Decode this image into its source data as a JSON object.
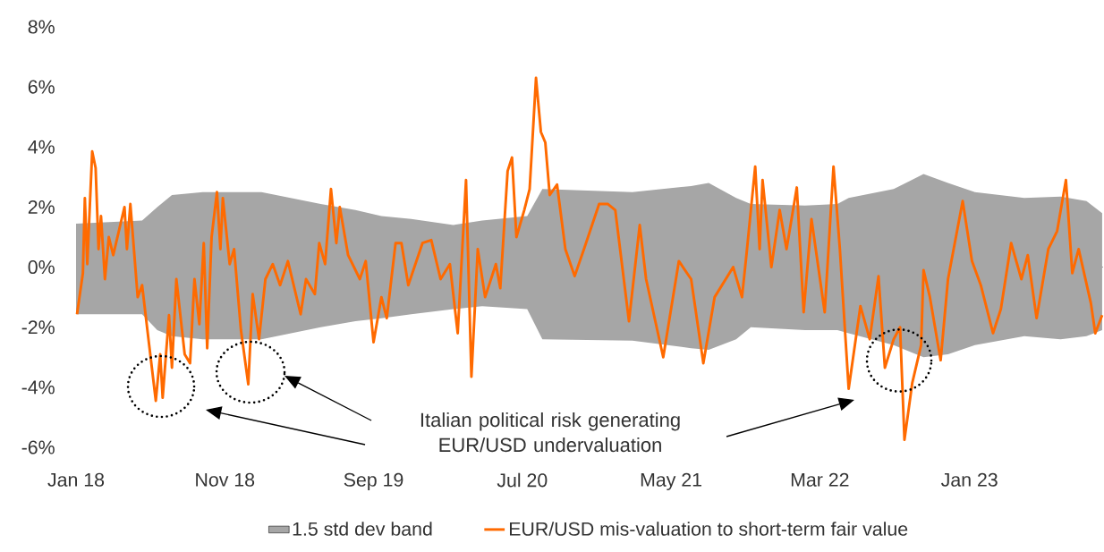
{
  "chart_data": {
    "type": "line",
    "xlim": [
      "2018-01-01",
      "2023-10-01"
    ],
    "xticks": [
      {
        "value": "2018-01-01",
        "label": "Jan 18"
      },
      {
        "value": "2018-11-01",
        "label": "Nov 18"
      },
      {
        "value": "2019-09-01",
        "label": "Sep 19"
      },
      {
        "value": "2020-07-01",
        "label": "Jul 20"
      },
      {
        "value": "2021-05-01",
        "label": "May 21"
      },
      {
        "value": "2022-03-01",
        "label": "Mar 22"
      },
      {
        "value": "2023-01-01",
        "label": "Jan 23"
      }
    ],
    "ylim": [
      -6,
      8
    ],
    "yticks": [
      {
        "value": -6,
        "label": "-6%"
      },
      {
        "value": -4,
        "label": "-4%"
      },
      {
        "value": -2,
        "label": "-2%"
      },
      {
        "value": 0,
        "label": "0%"
      },
      {
        "value": 2,
        "label": "2%"
      },
      {
        "value": 4,
        "label": "4%"
      },
      {
        "value": 6,
        "label": "6%"
      },
      {
        "value": 8,
        "label": "8%"
      }
    ],
    "legend": "bottom",
    "annotations": [
      "Italian political risk generating EUR/USD undervaluation"
    ],
    "series": [
      {
        "name": "1.5 std dev band",
        "type": "area",
        "color": "#a6a6a6",
        "x": [
          "2018-01-01",
          "2018-05-16",
          "2018-06-16",
          "2018-07-16",
          "2018-09-17",
          "2019-01-15",
          "2019-05-16",
          "2019-07-26",
          "2019-09-17",
          "2019-11-17",
          "2020-02-11",
          "2020-04-10",
          "2020-07-11",
          "2020-08-11",
          "2021-02-11",
          "2021-06-11",
          "2021-07-17",
          "2021-09-11",
          "2021-10-11",
          "2022-01-30",
          "2022-04-06",
          "2022-04-29",
          "2022-07-30",
          "2022-09-29",
          "2022-11-18",
          "2023-01-12",
          "2023-04-23",
          "2023-07-06",
          "2023-08-28",
          "2023-09-29"
        ],
        "values": [
          null,
          null,
          null,
          null,
          null,
          null,
          null,
          null,
          null,
          null,
          null,
          null,
          null,
          null,
          null,
          null,
          null,
          null,
          null,
          null,
          null,
          null,
          null,
          null,
          null,
          null,
          null,
          null,
          null,
          null
        ],
        "upper": [
          1.45,
          1.55,
          2.0,
          2.4,
          2.5,
          2.5,
          2.1,
          1.9,
          1.7,
          1.6,
          1.4,
          1.55,
          1.7,
          2.6,
          2.5,
          2.7,
          2.8,
          2.3,
          2.1,
          2.05,
          2.1,
          2.3,
          2.6,
          3.1,
          2.8,
          2.5,
          2.3,
          2.35,
          2.2,
          1.8
        ],
        "lower": [
          -1.57,
          -1.57,
          -2.1,
          -2.3,
          -2.4,
          -2.4,
          -2.0,
          -1.8,
          -1.7,
          -1.57,
          -1.4,
          -1.3,
          -1.4,
          -2.4,
          -2.45,
          -2.7,
          -2.75,
          -2.4,
          -2.0,
          -2.1,
          -2.1,
          -2.2,
          -2.6,
          -3.0,
          -2.9,
          -2.6,
          -2.3,
          -2.4,
          -2.3,
          -2.1
        ]
      },
      {
        "name": "EUR/USD mis-valuation to short-term fair value",
        "type": "line",
        "color": "#ff6a00",
        "x": [
          "2018-01-03",
          "2018-01-15",
          "2018-01-19",
          "2018-01-24",
          "2018-02-03",
          "2018-02-10",
          "2018-02-16",
          "2018-02-21",
          "2018-03-01",
          "2018-03-09",
          "2018-03-18",
          "2018-04-10",
          "2018-04-15",
          "2018-04-22",
          "2018-05-07",
          "2018-05-16",
          "2018-05-29",
          "2018-06-13",
          "2018-06-22",
          "2018-06-27",
          "2018-07-10",
          "2018-07-16",
          "2018-07-25",
          "2018-08-11",
          "2018-08-22",
          "2018-08-31",
          "2018-09-10",
          "2018-09-19",
          "2018-09-26",
          "2018-10-05",
          "2018-10-16",
          "2018-10-23",
          "2018-10-28",
          "2018-11-11",
          "2018-11-20",
          "2018-12-04",
          "2018-12-19",
          "2018-12-28",
          "2019-01-10",
          "2019-01-23",
          "2019-02-07",
          "2019-02-22",
          "2019-03-10",
          "2019-04-05",
          "2019-04-16",
          "2019-05-04",
          "2019-05-13",
          "2019-05-25",
          "2019-06-06",
          "2019-06-17",
          "2019-06-24",
          "2019-07-11",
          "2019-08-04",
          "2019-08-16",
          "2019-09-01",
          "2019-09-17",
          "2019-09-28",
          "2019-10-16",
          "2019-10-28",
          "2019-11-11",
          "2019-12-10",
          "2019-12-28",
          "2020-01-16",
          "2020-02-04",
          "2020-02-20",
          "2020-03-08",
          "2020-03-19",
          "2020-04-01",
          "2020-04-16",
          "2020-05-08",
          "2020-05-17",
          "2020-06-01",
          "2020-06-10",
          "2020-06-19",
          "2020-07-05",
          "2020-07-16",
          "2020-07-29",
          "2020-08-08",
          "2020-08-17",
          "2020-08-26",
          "2020-09-10",
          "2020-09-27",
          "2020-10-16",
          "2020-11-04",
          "2020-12-05",
          "2020-12-23",
          "2021-01-07",
          "2021-02-04",
          "2021-02-26",
          "2021-03-11",
          "2021-04-15",
          "2021-05-17",
          "2021-06-11",
          "2021-07-06",
          "2021-07-29",
          "2021-09-05",
          "2021-09-23",
          "2021-10-02",
          "2021-10-20",
          "2021-10-29",
          "2021-11-04",
          "2021-11-22",
          "2021-12-09",
          "2021-12-23",
          "2022-01-13",
          "2022-01-27",
          "2022-02-12",
          "2022-03-11",
          "2022-03-29",
          "2022-04-11",
          "2022-04-29",
          "2022-05-23",
          "2022-06-11",
          "2022-06-29",
          "2022-07-12",
          "2022-07-30",
          "2022-08-12",
          "2022-08-21",
          "2022-09-06",
          "2022-09-24",
          "2022-09-29",
          "2022-10-12",
          "2022-11-03",
          "2022-11-18",
          "2022-12-18",
          "2023-01-06",
          "2023-01-24",
          "2023-02-18",
          "2023-03-06",
          "2023-03-27",
          "2023-04-17",
          "2023-04-30",
          "2023-05-18",
          "2023-06-11",
          "2023-06-29",
          "2023-07-17",
          "2023-07-30",
          "2023-08-12",
          "2023-09-06",
          "2023-09-15",
          "2023-09-29"
        ],
        "values": [
          -1.57,
          -0.2,
          2.3,
          0.1,
          3.85,
          3.3,
          0.6,
          1.7,
          -0.4,
          1.0,
          0.4,
          2.0,
          0.6,
          2.1,
          -1.0,
          -0.6,
          -2.4,
          -4.45,
          -2.9,
          -4.35,
          -1.6,
          -3.35,
          -0.4,
          -2.9,
          -3.2,
          -0.4,
          -1.9,
          0.8,
          -2.7,
          1.0,
          2.5,
          0.6,
          2.3,
          0.1,
          0.6,
          -2.1,
          -3.9,
          -0.9,
          -2.4,
          -0.4,
          0.1,
          -0.6,
          0.2,
          -1.57,
          -0.4,
          -0.9,
          0.8,
          0.1,
          2.6,
          0.8,
          2.0,
          0.4,
          -0.4,
          0.2,
          -2.5,
          -1.0,
          -1.7,
          0.8,
          0.8,
          -0.6,
          0.8,
          0.9,
          -0.4,
          0.1,
          -2.2,
          2.9,
          -3.65,
          0.6,
          -1.0,
          0.1,
          -0.7,
          3.2,
          3.65,
          1.0,
          1.9,
          2.6,
          6.3,
          4.5,
          4.15,
          2.4,
          2.75,
          0.6,
          -0.3,
          0.6,
          2.1,
          2.1,
          1.9,
          -1.8,
          1.4,
          -0.4,
          -3.0,
          0.2,
          -0.4,
          -3.2,
          -1.0,
          0.0,
          -1.0,
          0.4,
          3.35,
          0.6,
          2.9,
          0.0,
          1.9,
          0.6,
          2.65,
          -1.5,
          1.6,
          -1.5,
          3.35,
          0.6,
          -4.05,
          -1.3,
          -2.4,
          -0.3,
          -3.35,
          -2.4,
          -2.0,
          -5.75,
          -3.85,
          -2.6,
          -0.1,
          -1.0,
          -3.1,
          -0.4,
          2.2,
          0.2,
          -0.6,
          -2.2,
          -1.4,
          0.8,
          -0.4,
          0.4,
          -1.7,
          0.6,
          1.2,
          2.9,
          -0.2,
          0.6,
          -1.2,
          -2.2,
          -1.6
        ]
      }
    ]
  }
}
